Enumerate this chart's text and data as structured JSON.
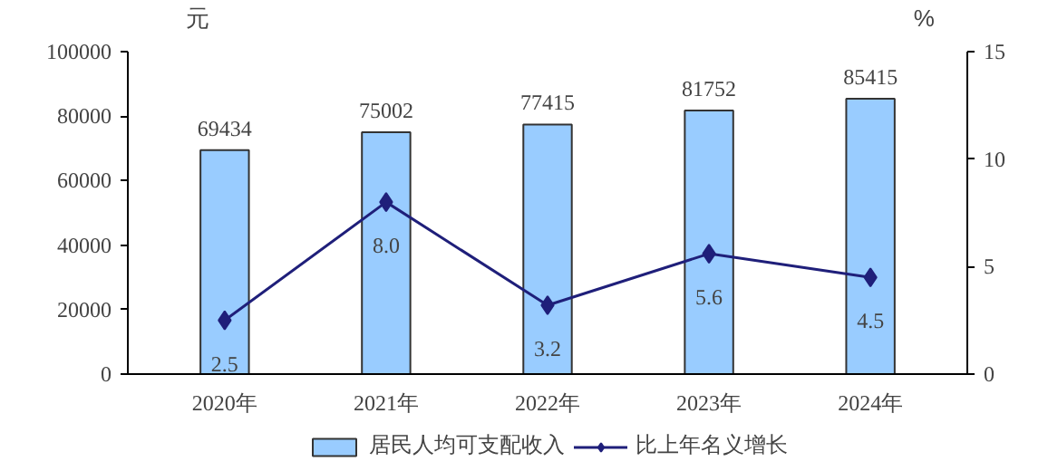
{
  "chart_data": {
    "type": "bar",
    "categories": [
      "2020年",
      "2021年",
      "2022年",
      "2023年",
      "2024年"
    ],
    "ylabel": "元",
    "y2label": "%",
    "series": [
      {
        "name": "居民人均可支配收入",
        "color": "#99ccff",
        "values": [
          69434,
          75002,
          77415,
          81752,
          85415
        ]
      },
      {
        "name": "比上年名义增长",
        "type": "line",
        "color": "#1f1f7a",
        "axis": "y2",
        "marker": "diamond",
        "values": [
          2.5,
          8.0,
          3.2,
          5.6,
          4.5
        ],
        "value_labels": [
          "2.5",
          "8.0",
          "3.2",
          "5.6",
          "4.5"
        ]
      }
    ],
    "data_labels": true,
    "ylim": [
      0,
      100000
    ],
    "yticks": [
      0,
      20000,
      40000,
      60000,
      80000,
      100000
    ],
    "y2lim": [
      0,
      15
    ],
    "y2ticks": [
      0,
      5,
      10,
      15
    ],
    "grid": false,
    "legend": "bottom"
  }
}
